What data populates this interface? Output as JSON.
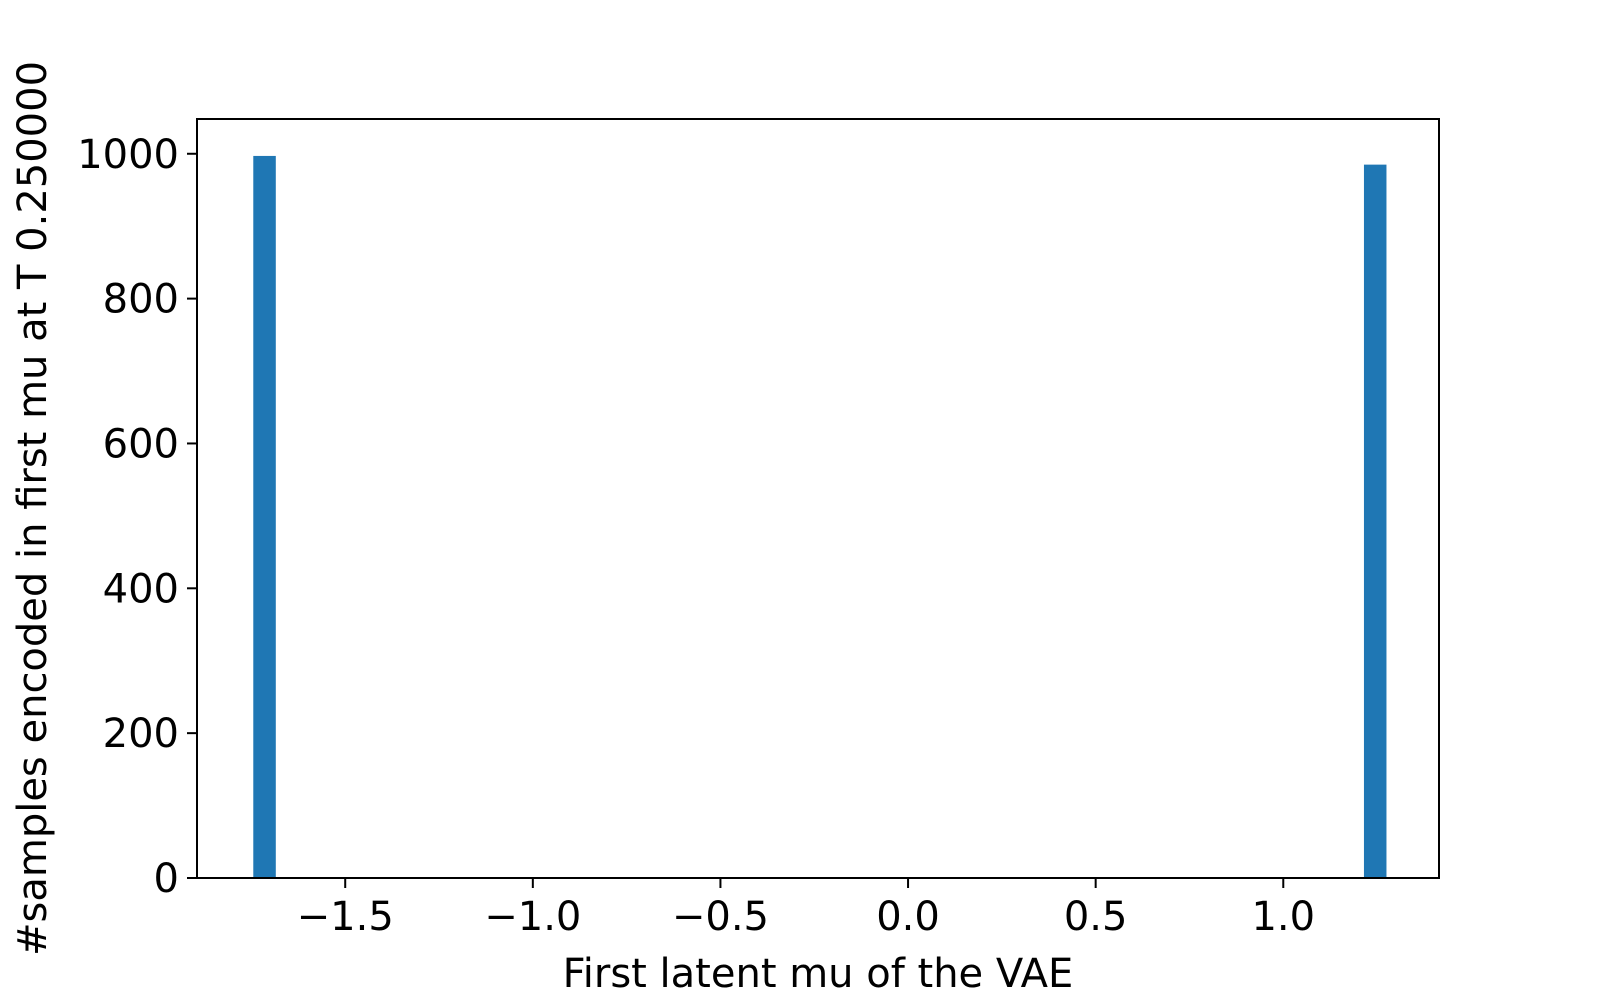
{
  "chart_data": {
    "type": "bar",
    "title": "",
    "xlabel": "First latent mu of the VAE",
    "ylabel": "#samples encoded in first mu at T 0.250000",
    "xlim": [
      -1.895,
      1.415
    ],
    "ylim": [
      0,
      1048
    ],
    "xticks": [
      -1.5,
      -1.0,
      -0.5,
      0.0,
      0.5,
      1.0
    ],
    "xtick_labels": [
      "−1.5",
      "−1.0",
      "−0.5",
      "0.0",
      "0.5",
      "1.0"
    ],
    "yticks": [
      0,
      200,
      400,
      600,
      800,
      1000
    ],
    "ytick_labels": [
      "0",
      "200",
      "400",
      "600",
      "800",
      "1000"
    ],
    "bars": [
      {
        "x_start": -1.745,
        "x_end": -1.685,
        "value": 997
      },
      {
        "x_start": 1.215,
        "x_end": 1.275,
        "value": 985
      }
    ],
    "grid": false,
    "bar_color": "#1f77b4"
  }
}
